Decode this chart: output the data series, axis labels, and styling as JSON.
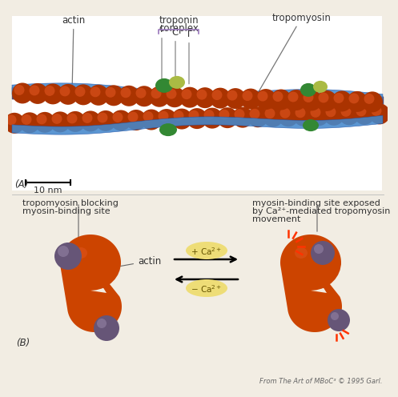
{
  "bg_color": "#f2ede3",
  "actin_color": "#cc4400",
  "actin_highlight": "#e05520",
  "filament_color": "#554466",
  "blue_trop": "#4488cc",
  "green_dark": "#336633",
  "green_light": "#99cc44",
  "text_color": "#333333",
  "ca_fill": "#eedd77",
  "ca_text": "#665500",
  "flash_color": "#ff3300",
  "purple_ball": "#665577",
  "purple_light": "#9988aa",
  "label_fontsize": 8.5,
  "panel_A_label": "(A)",
  "panel_B_label": "(B)",
  "scale_label": "10 nm",
  "label_actin": "actin",
  "label_troponin_L1": "troponin",
  "label_troponin_L2": "complex",
  "label_tropomyosin": "tropomyosin",
  "label_I": "I",
  "label_C": "C",
  "label_T": "T",
  "label_block_L1": "tropomyosin blocking",
  "label_block_L2": "myosin-binding site",
  "label_exposed_L1": "myosin-binding site exposed",
  "label_exposed_L2": "by Ca²⁺-mediated tropomyosin",
  "label_exposed_L3": "movement",
  "label_actin_B": "actin",
  "label_plus_ca": "+ Ca²⁺",
  "label_minus_ca": "− Ca²⁺",
  "credit": "From The Art of MBoC³ © 1995 Garl.",
  "credit_fontsize": 6.0
}
